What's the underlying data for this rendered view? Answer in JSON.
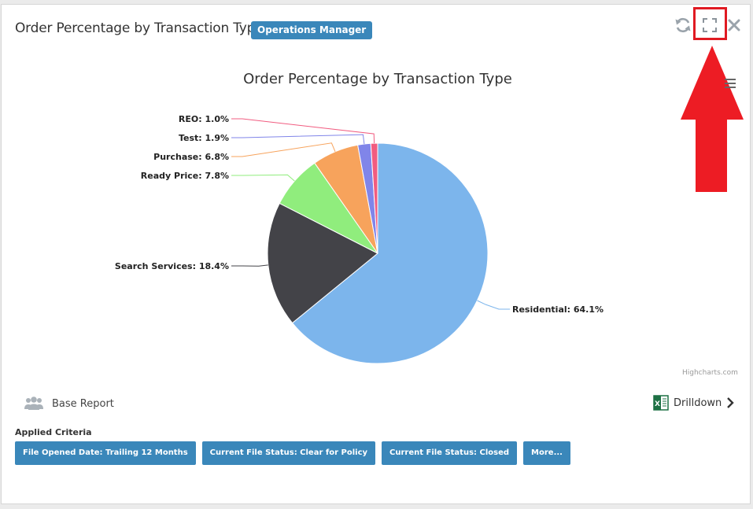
{
  "panel": {
    "title": "Order Percentage by Transaction Type",
    "role_badge": "Operations Manager"
  },
  "toolbar": {
    "icons": [
      "refresh-icon",
      "fullscreen-icon",
      "close-icon"
    ],
    "highlight_color": "#e01a22"
  },
  "chart_data": {
    "type": "pie",
    "title": "Order Percentage by Transaction Type",
    "slices": [
      {
        "name": "Residential",
        "value": 64.1,
        "label": "Residential: 64.1%",
        "color": "#7cb5ec"
      },
      {
        "name": "Search Services",
        "value": 18.4,
        "label": "Search Services: 18.4%",
        "color": "#434348"
      },
      {
        "name": "Ready Price",
        "value": 7.8,
        "label": "Ready Price: 7.8%",
        "color": "#90ed7d"
      },
      {
        "name": "Purchase",
        "value": 6.8,
        "label": "Purchase: 6.8%",
        "color": "#f7a35c"
      },
      {
        "name": "Test",
        "value": 1.9,
        "label": "Test: 1.9%",
        "color": "#8085e9"
      },
      {
        "name": "REO",
        "value": 1.0,
        "label": "REO: 1.0%",
        "color": "#f15c80"
      }
    ],
    "credits": "Highcharts.com"
  },
  "footer": {
    "base_report_label": "Base Report",
    "drilldown_label": "Drilldown"
  },
  "criteria": {
    "title": "Applied Criteria",
    "chips": [
      "File Opened Date: Trailing 12 Months",
      "Current File Status: Clear for Policy",
      "Current File Status: Closed",
      "More..."
    ]
  }
}
